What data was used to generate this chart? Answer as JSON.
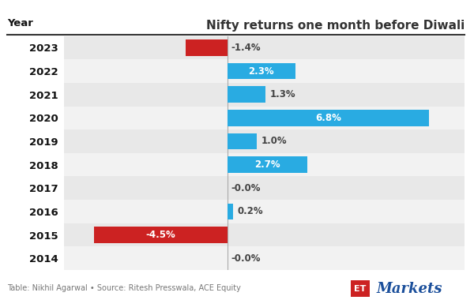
{
  "title": "Nifty returns one month before Diwali",
  "years": [
    "2014",
    "2015",
    "2016",
    "2017",
    "2018",
    "2019",
    "2020",
    "2021",
    "2022",
    "2023"
  ],
  "values": [
    -0.0,
    -4.5,
    0.2,
    -0.0,
    2.7,
    1.0,
    6.8,
    1.3,
    2.3,
    -1.4
  ],
  "labels": [
    "-0.0%",
    "-4.5%",
    "0.2%",
    "-0.0%",
    "2.7%",
    "1.0%",
    "6.8%",
    "1.3%",
    "2.3%",
    "-1.4%"
  ],
  "positive_color": "#29ABE2",
  "negative_color": "#CC2222",
  "row_bg_colors": [
    "#F2F2F2",
    "#E8E8E8"
  ],
  "title_color": "#333333",
  "year_label_color": "#111111",
  "footer_text": "Table: Nikhil Agarwal • Source: Ritesh Presswala, ACE Equity",
  "et_color": "#CC2222",
  "markets_color": "#1B4F9B",
  "background_color": "#FFFFFF",
  "xlim_left": -5.5,
  "xlim_right": 8.0
}
